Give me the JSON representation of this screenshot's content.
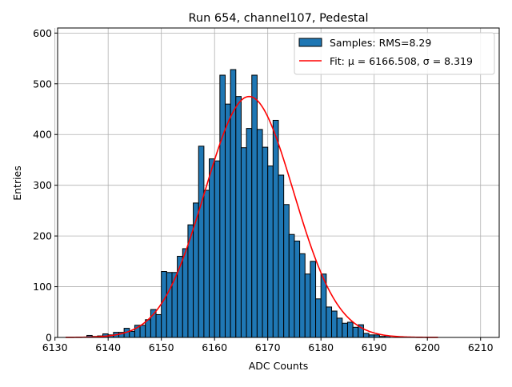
{
  "chart_data": {
    "type": "bar",
    "title": "Run 654, channel107, Pedestal",
    "xlabel": "ADC Counts",
    "ylabel": "Entries",
    "xlim": [
      6130.5,
      6213.5
    ],
    "ylim": [
      0,
      610
    ],
    "xticks": [
      "6130",
      "6140",
      "6150",
      "6160",
      "6170",
      "6180",
      "6190",
      "6200",
      "6210"
    ],
    "yticks": [
      "0",
      "100",
      "200",
      "300",
      "400",
      "500",
      "600"
    ],
    "grid": true,
    "legend_position": "top-right",
    "legend": {
      "samples_label": "Samples: RMS=8.29",
      "fit_label": "Fit: μ = 6166.508, σ = 8.319"
    },
    "bar_color": "#1f77b4",
    "fit_color": "#ff0000",
    "bins_start": 6132,
    "bin_width": 1,
    "values": [
      0,
      0,
      0,
      0,
      4,
      2,
      3,
      7,
      5,
      10,
      10,
      18,
      12,
      24,
      24,
      35,
      55,
      45,
      130,
      128,
      128,
      160,
      175,
      222,
      265,
      377,
      290,
      352,
      348,
      517,
      460,
      528,
      475,
      374,
      412,
      517,
      410,
      375,
      338,
      428,
      320,
      262,
      203,
      190,
      165,
      125,
      150,
      76,
      125,
      60,
      52,
      38,
      28,
      30,
      20,
      25,
      8,
      5,
      5,
      2,
      3,
      0,
      0,
      0,
      0,
      0,
      0,
      0,
      0,
      0,
      0
    ],
    "fit": {
      "mu": 6166.508,
      "sigma": 8.319,
      "amplitude": 475,
      "x_range": [
        6132,
        6202
      ]
    }
  }
}
